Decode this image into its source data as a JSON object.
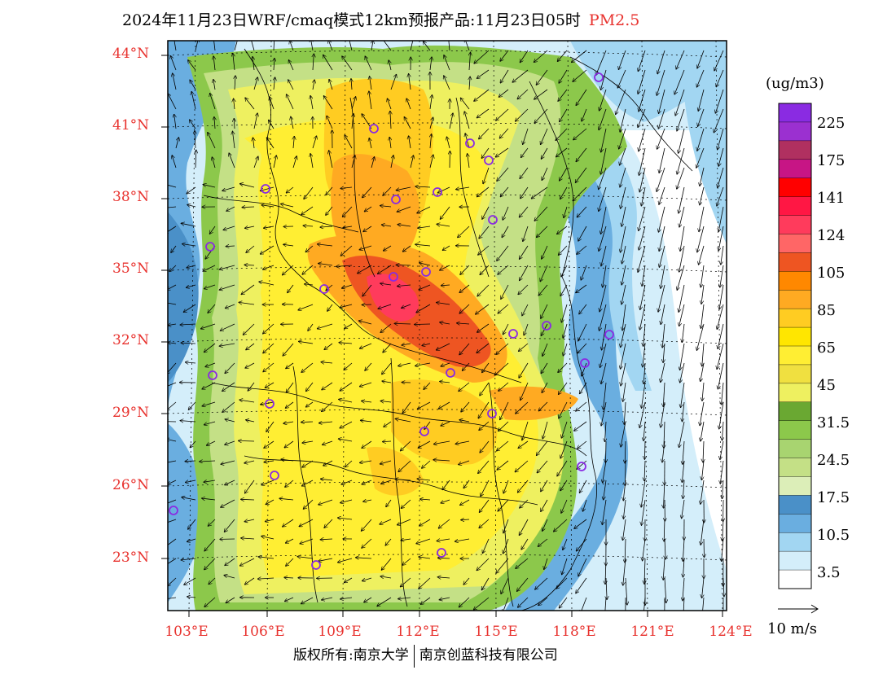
{
  "title": {
    "main": "2024年11月23日WRF/cmaq模式12km预报产品:11月23日05时",
    "variable": "PM2.5"
  },
  "axes": {
    "lat_labels": [
      "44°N",
      "41°N",
      "38°N",
      "35°N",
      "32°N",
      "29°N",
      "26°N",
      "23°N"
    ],
    "lon_labels": [
      "103°E",
      "106°E",
      "109°E",
      "112°E",
      "115°E",
      "118°E",
      "121°E",
      "124°E"
    ]
  },
  "legend": {
    "unit": "(ug/m3)",
    "labels": [
      "225",
      "175",
      "141",
      "124",
      "105",
      "85",
      "65",
      "45",
      "31.5",
      "24.5",
      "17.5",
      "10.5",
      "3.5"
    ],
    "colors": [
      "#8a2be2",
      "#9b30d0",
      "#b03060",
      "#c71585",
      "#ff0000",
      "#ff1744",
      "#ff3b5c",
      "#ff6666",
      "#ee5522",
      "#ff8800",
      "#ffaa22",
      "#ffcc22",
      "#ffe600",
      "#ffee33",
      "#f0e040",
      "#eef060",
      "#6aa832",
      "#8cc84b",
      "#a8d470",
      "#c4e086",
      "#dceeb8",
      "#4a90c8",
      "#6aaee0",
      "#a2d6f2",
      "#d4eefa",
      "#ffffff"
    ]
  },
  "wind_reference": "10 m/s",
  "copyright": {
    "left": "版权所有:南京大学",
    "right": "南京创蓝科技有限公司"
  },
  "colors": {
    "accent_red": "#e8322e",
    "site_marker": "#8a2be2"
  }
}
